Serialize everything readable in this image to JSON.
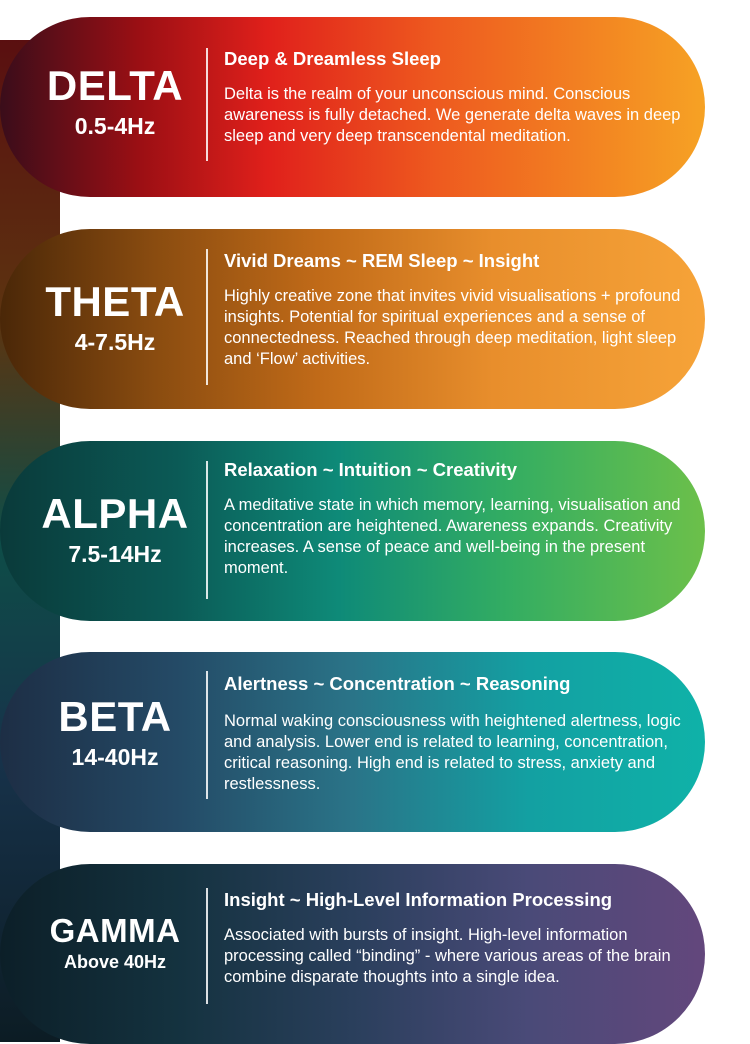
{
  "bands": [
    {
      "name": "DELTA",
      "frequency": "0.5-4Hz",
      "heading": "Deep & Dreamless Sleep",
      "description": "Delta is the realm of your unconscious mind. Conscious awareness is fully detached. We generate delta waves in deep sleep and very deep transcendental meditation."
    },
    {
      "name": "THETA",
      "frequency": "4-7.5Hz",
      "heading": "Vivid Dreams ~ REM Sleep ~ Insight",
      "description": "Highly creative zone that invites vivid visualisations + profound insights. Potential for spiritual experiences and a sense of connectedness. Reached through deep meditation, light sleep and ‘Flow’ activities."
    },
    {
      "name": "ALPHA",
      "frequency": "7.5-14Hz",
      "heading": "Relaxation ~ Intuition ~ Creativity",
      "description": "A meditative state in which memory, learning, visualisation and concentration are heightened. Awareness expands. Creativity increases. A sense of peace and well-being in the present moment."
    },
    {
      "name": "BETA",
      "frequency": "14-40Hz",
      "heading": "Alertness ~ Concentration ~ Reasoning",
      "description": "Normal waking consciousness with heightened alertness, logic and analysis. Lower end is related to learning, concentration, critical reasoning. High end is related to stress, anxiety and restlessness."
    },
    {
      "name": "GAMMA",
      "frequency": "Above 40Hz",
      "heading": "Insight ~ High-Level Information Processing",
      "description": "Associated with bursts of insight. High-level information processing called “binding” - where various areas of the brain combine disparate thoughts into a single idea."
    }
  ]
}
